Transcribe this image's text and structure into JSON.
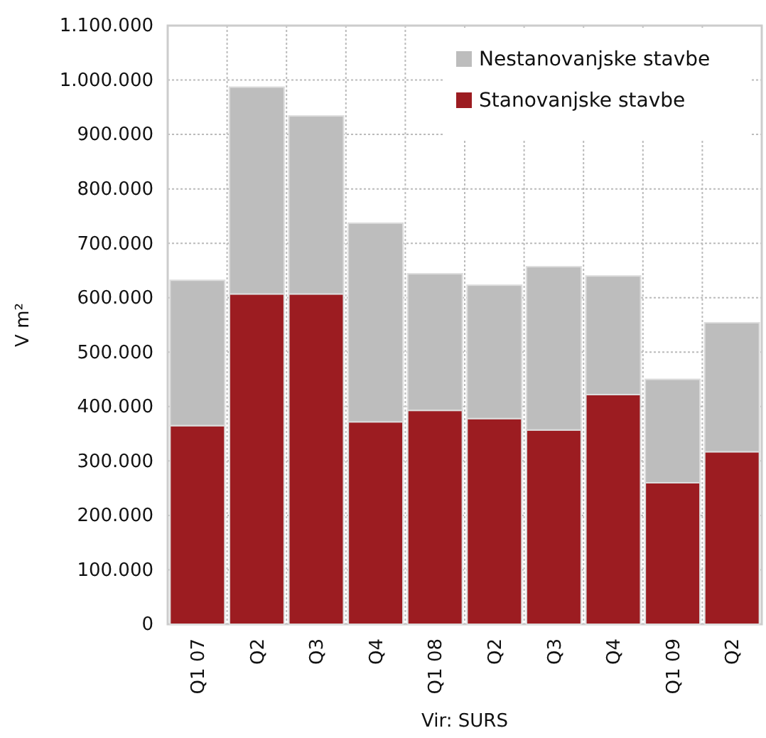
{
  "chart_data": {
    "type": "bar",
    "stacked": true,
    "ylabel": "V m²",
    "annotations": [
      "Vir: SURS"
    ],
    "categories": [
      "Q1 07",
      "Q2",
      "Q3",
      "Q4",
      "Q1 08",
      "Q2",
      "Q3",
      "Q4",
      "Q1 09",
      "Q2"
    ],
    "series": [
      {
        "name": "Stanovanjske stavbe",
        "color": "#9c1c21",
        "values": [
          365000,
          607000,
          607000,
          372000,
          393000,
          378000,
          357000,
          422000,
          260000,
          317000
        ]
      },
      {
        "name": "Nestanovanjske stavbe",
        "color": "#bdbdbd",
        "values": [
          267000,
          380000,
          327000,
          365000,
          251000,
          245000,
          300000,
          218000,
          190000,
          237000
        ]
      }
    ],
    "ylim": [
      0,
      1100000
    ],
    "yticks": [
      0,
      {
        "value": 100000,
        "label": "100.000"
      },
      {
        "value": 200000,
        "label": "200.000"
      },
      {
        "value": 300000,
        "label": "300.000"
      },
      {
        "value": 400000,
        "label": "400.000"
      },
      {
        "value": 500000,
        "label": "500.000"
      },
      {
        "value": 600000,
        "label": "600.000"
      },
      {
        "value": 700000,
        "label": "700.000"
      },
      {
        "value": 800000,
        "label": "800.000"
      },
      {
        "value": 900000,
        "label": "900.000"
      },
      {
        "value": 1000000,
        "label": "1.000.000"
      },
      {
        "value": 1100000,
        "label": "1.100.000"
      }
    ],
    "grid": true,
    "legend": "top right"
  }
}
